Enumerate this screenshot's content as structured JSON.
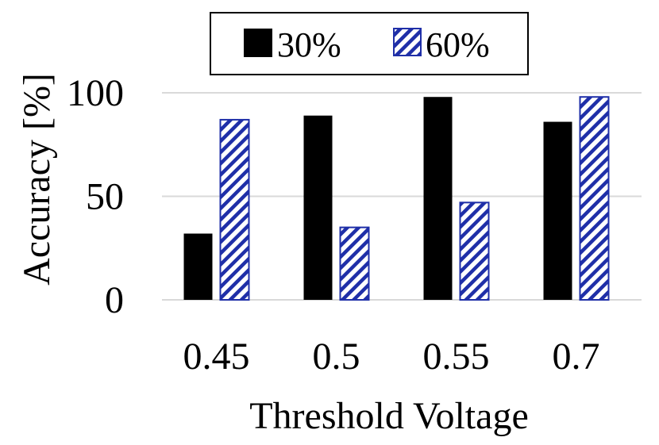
{
  "chart_data": {
    "type": "bar",
    "title": "",
    "xlabel": "Threshold Voltage",
    "ylabel": "Accuracy [%]",
    "categories": [
      "0.45",
      "0.5",
      "0.55",
      "0.7"
    ],
    "series": [
      {
        "name": "30%",
        "values": [
          32,
          89,
          98,
          86
        ],
        "color": "#000000",
        "pattern": "solid"
      },
      {
        "name": "60%",
        "values": [
          87,
          35,
          47,
          98
        ],
        "color": "#1f2fa8",
        "pattern": "diagonal-hatch"
      }
    ],
    "ylim": [
      0,
      100
    ],
    "yticks": [
      0,
      50,
      100
    ],
    "ytick_labels": [
      "0",
      "50",
      "100"
    ],
    "grid": true,
    "legend_position": "top-center"
  }
}
